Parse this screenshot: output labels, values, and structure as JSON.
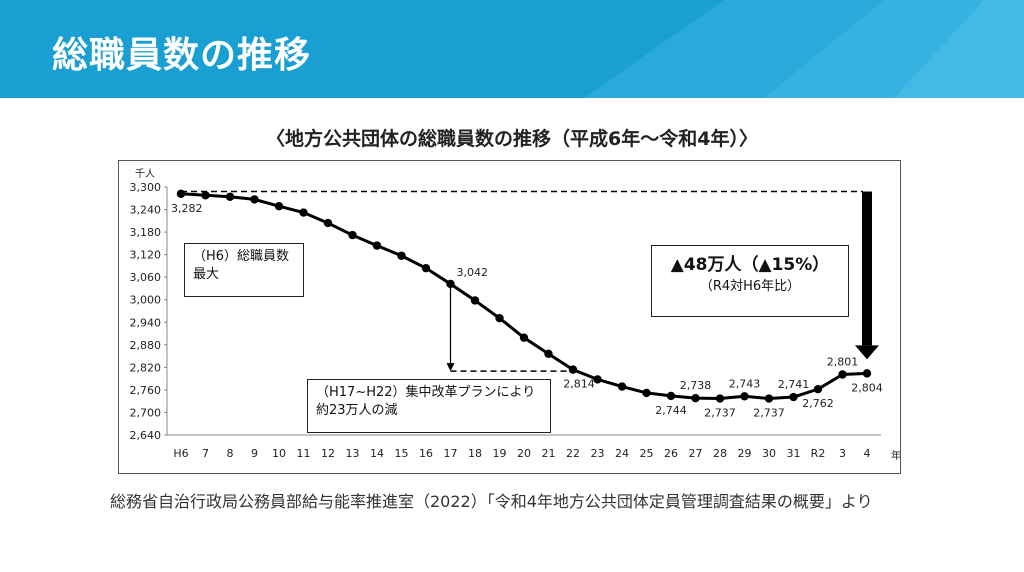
{
  "header": {
    "title": "総職員数の推移"
  },
  "chart_data": {
    "type": "line",
    "title": "〈地方公共団体の総職員数の推移（平成6年～令和4年）〉",
    "unit_label": "千人",
    "xlabel": "年",
    "categories": [
      "H6",
      "7",
      "8",
      "9",
      "10",
      "11",
      "12",
      "13",
      "14",
      "15",
      "16",
      "17",
      "18",
      "19",
      "20",
      "21",
      "22",
      "23",
      "24",
      "25",
      "26",
      "27",
      "28",
      "29",
      "30",
      "31",
      "R2",
      "3",
      "4"
    ],
    "values": [
      3282,
      3278,
      3274,
      3267,
      3249,
      3232,
      3204,
      3172,
      3144,
      3117,
      3084,
      3042,
      2998,
      2951,
      2899,
      2856,
      2814,
      2788,
      2769,
      2752,
      2744,
      2738,
      2737,
      2743,
      2737,
      2741,
      2762,
      2801,
      2804
    ],
    "data_labels": [
      {
        "index": 0,
        "text": "3,282"
      },
      {
        "index": 11,
        "text": "3,042"
      },
      {
        "index": 16,
        "text": "2,814"
      },
      {
        "index": 20,
        "text": "2,744"
      },
      {
        "index": 21,
        "text": "2,738"
      },
      {
        "index": 22,
        "text": "2,737"
      },
      {
        "index": 23,
        "text": "2,743"
      },
      {
        "index": 24,
        "text": "2,737"
      },
      {
        "index": 25,
        "text": "2,741"
      },
      {
        "index": 26,
        "text": "2,762"
      },
      {
        "index": 27,
        "text": "2,801"
      },
      {
        "index": 28,
        "text": "2,804"
      }
    ],
    "ylim": [
      2640,
      3300
    ],
    "yticks": [
      3300,
      3240,
      3180,
      3120,
      3060,
      3000,
      2940,
      2880,
      2820,
      2760,
      2700,
      2640
    ],
    "ytick_labels": [
      "3,300",
      "3,240",
      "3,180",
      "3,120",
      "3,060",
      "3,000",
      "2,940",
      "2,880",
      "2,820",
      "2,760",
      "2,700",
      "2,640"
    ],
    "grid": false,
    "reference_line_value": 3288,
    "reduction_line_value": 2810,
    "annotations": {
      "peak": {
        "line1": "（H6）総職員数",
        "line2": "最大"
      },
      "reduction": {
        "line1": "（H17~H22）集中改革プランにより",
        "line2": "約23万人の減"
      },
      "total": {
        "line1": "▲48万人（▲15%）",
        "line2": "（R4対H6年比）"
      }
    },
    "colors": {
      "line": "#000000",
      "arrow": "#000000"
    }
  },
  "source": "総務省自治行政局公務員部給与能率推進室（2022）「令和4年地方公共団体定員管理調査結果の概要」より"
}
